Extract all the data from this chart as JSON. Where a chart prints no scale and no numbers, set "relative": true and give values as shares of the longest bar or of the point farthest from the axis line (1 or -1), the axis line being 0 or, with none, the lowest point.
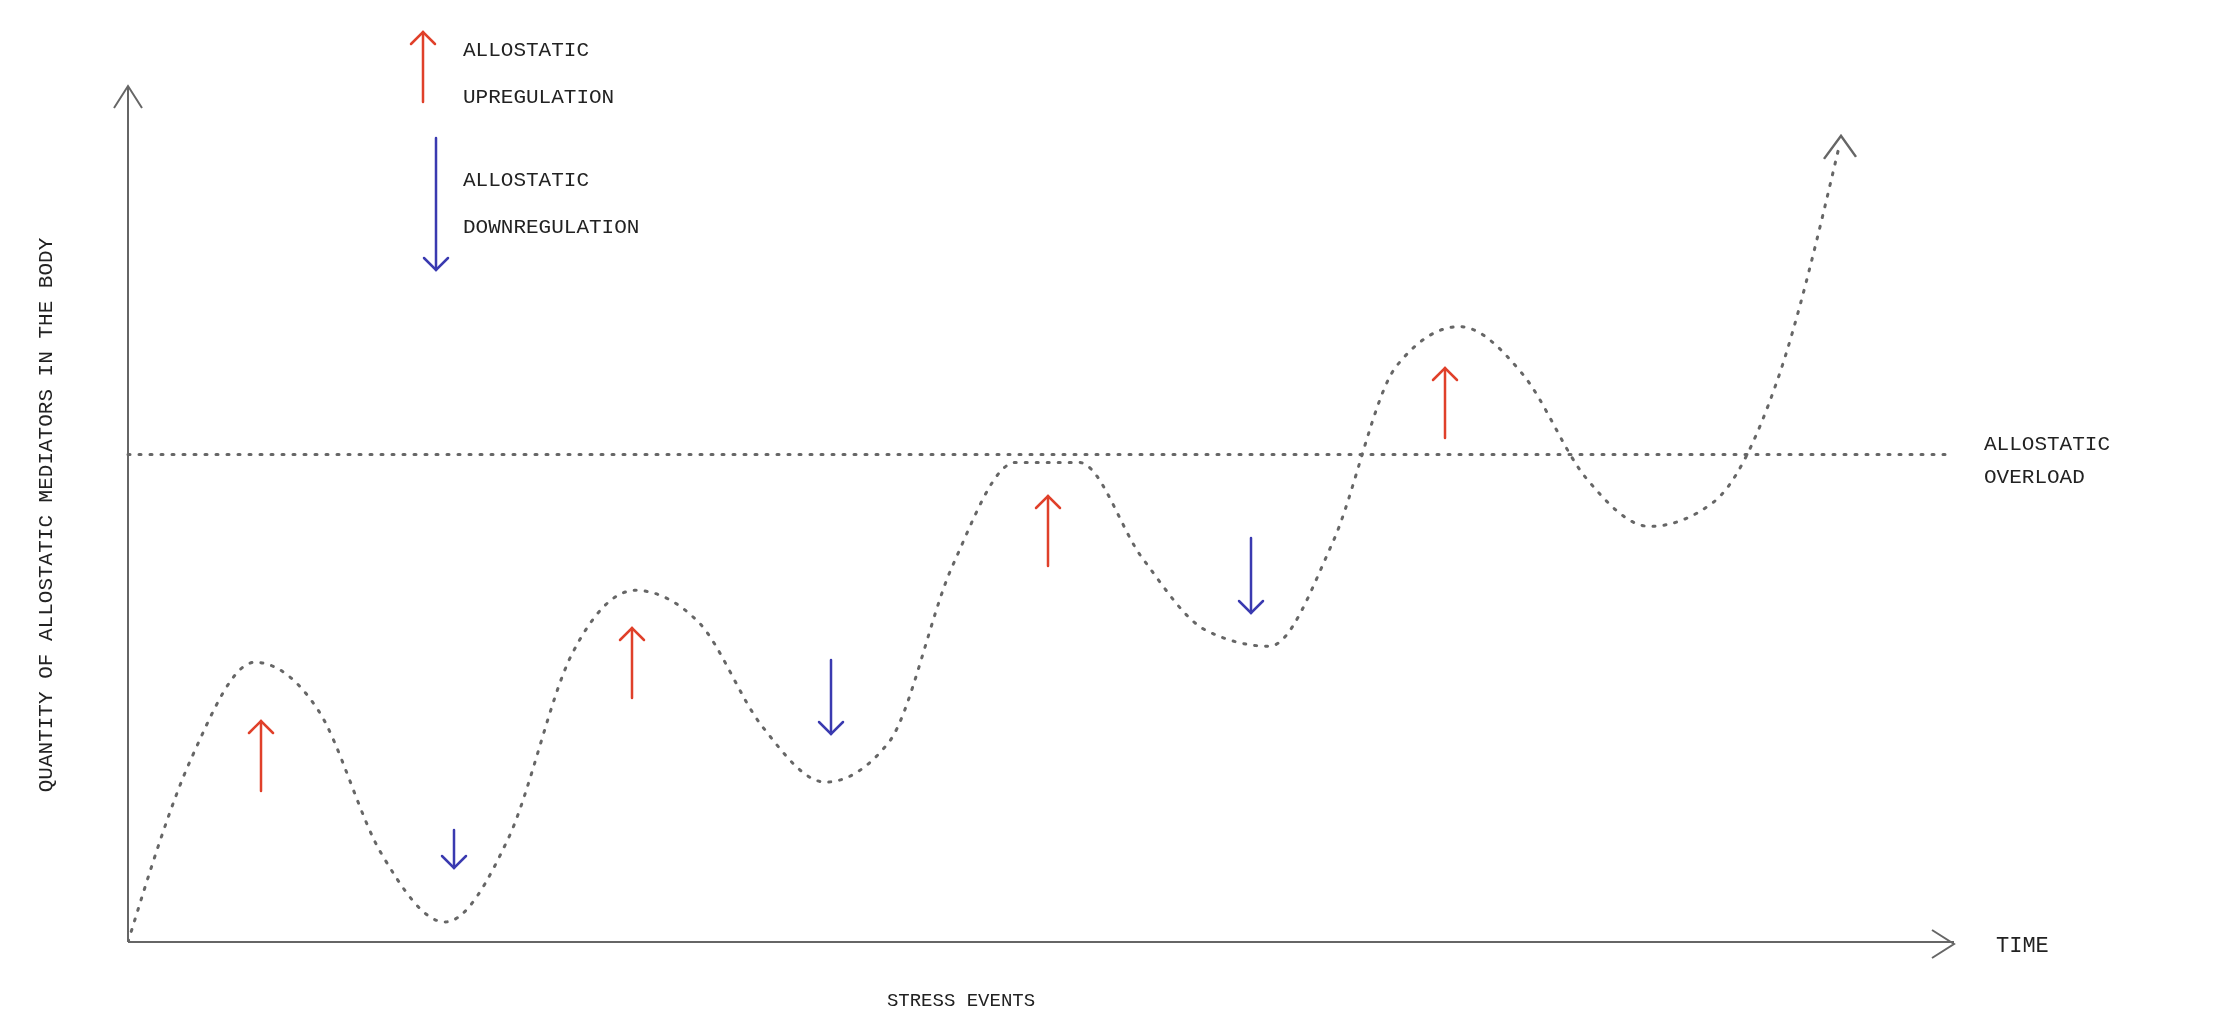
{
  "chart_data": {
    "type": "line",
    "relative": true,
    "xlabel": "STRESS EVENTS",
    "ylabel": "QUANTITY OF ALLOSTATIC MEDIATORS IN THE BODY",
    "categories": [
      null,
      null,
      null,
      null,
      null,
      null,
      null,
      null,
      null,
      null,
      null,
      null,
      null,
      null,
      null,
      null,
      null,
      null,
      null,
      null,
      null,
      null,
      null,
      null,
      null,
      null,
      null,
      null
    ],
    "series": [
      {
        "color": "#666666",
        "values": [
          0,
          0.23,
          0.35,
          0.29,
          0.11,
          0.025,
          0.13,
          0.36,
          0.44,
          0.4,
          0.27,
          0.2,
          0.25,
          0.47,
          0.6,
          0.6,
          0.48,
          0.39,
          0.37,
          0.5,
          0.72,
          0.77,
          0.71,
          0.58,
          0.52,
          0.55,
          0.7,
          1.0
        ]
      }
    ],
    "line_style": "dotted",
    "marker": "none",
    "ref_lines": [
      {
        "axis": "y",
        "value": 0.61,
        "label": "ALLOSTATIC OVERLOAD",
        "color": "#666666",
        "line_style": "dotted"
      }
    ],
    "annotations": [
      "TIME",
      "ALLOSTATIC UPREGULATION",
      "ALLOSTATIC DOWNREGULATION"
    ]
  }
}
